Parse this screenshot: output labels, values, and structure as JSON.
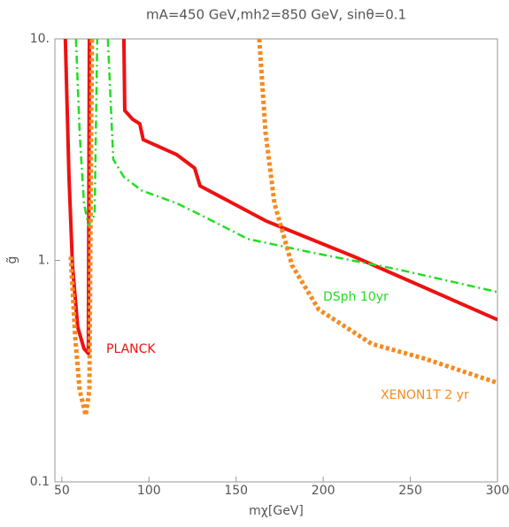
{
  "chart_data": {
    "type": "line",
    "title": "mA=450 GeV,mh2=850 GeV, sinθ=0.1",
    "x_label": "mχ[GeV]",
    "y_label": "g̃",
    "xlim": [
      46,
      300
    ],
    "ylim": [
      0.1,
      10
    ],
    "ylog": true,
    "xticks": [
      50,
      100,
      150,
      200,
      250,
      300
    ],
    "yticks": [
      {
        "value": 0.1,
        "label": "0.1"
      },
      {
        "value": 1,
        "label": "1."
      },
      {
        "value": 10,
        "label": "10."
      }
    ],
    "series": [
      {
        "name": "PLANCK",
        "color": "#ee1111",
        "style": "solid",
        "x": [
          52.0,
          54.1,
          56.1,
          59.1,
          62.7,
          65.2,
          65.8,
          null,
          85.6,
          86.1,
          90.7,
          94.7,
          96.7,
          116,
          126.2,
          129.3,
          166.9,
          217.7,
          300
        ],
        "values": [
          10,
          2.38,
          0.95,
          0.5,
          0.4,
          0.38,
          10,
          null,
          10,
          4.75,
          4.33,
          4.14,
          3.51,
          3.0,
          2.61,
          2.17,
          1.51,
          1.04,
          0.54
        ]
      },
      {
        "name": "DSph 10yr",
        "color": "#22dd22",
        "style": "dashdot",
        "x": [
          58.1,
          60.2,
          62.7,
          65.2,
          68.8,
          70.3,
          null,
          76.4,
          79.5,
          85.6,
          95.7,
          116,
          131.3,
          156.7,
          192.3,
          243,
          300
        ],
        "values": [
          10,
          3.77,
          1.81,
          1.44,
          1.6,
          10,
          null,
          10,
          2.86,
          2.38,
          2.07,
          1.81,
          1.58,
          1.25,
          1.09,
          0.91,
          0.72
        ]
      },
      {
        "name": "XENON1T 2 yr",
        "color": "#f58a1f",
        "style": "dotted",
        "x": [
          55.1,
          57.6,
          60.2,
          63.7,
          65.8,
          66.3,
          67.3,
          null,
          163.3,
          166.9,
          172,
          182.1,
          197.4,
          227.8,
          258.3,
          300
        ],
        "values": [
          1.04,
          0.456,
          0.26,
          0.2,
          0.26,
          0.95,
          10,
          null,
          10,
          3.77,
          1.81,
          0.95,
          0.6,
          0.42,
          0.36,
          0.28
        ]
      }
    ]
  }
}
